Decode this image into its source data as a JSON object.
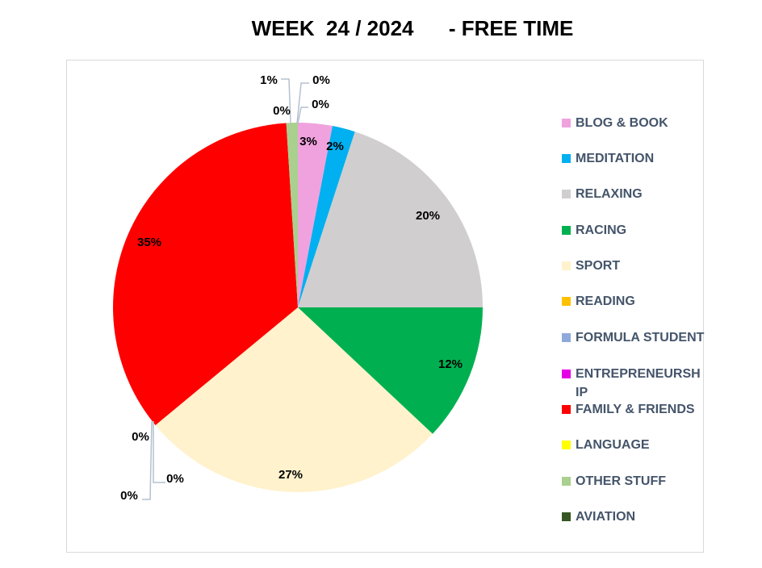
{
  "chart_data": {
    "type": "pie",
    "title": "WEEK  24 / 2024      - FREE TIME",
    "categories": [
      "BLOG & BOOK",
      "MEDITATION",
      "RELAXING",
      "RACING",
      "SPORT",
      "READING",
      "FORMULA STUDENT",
      "ENTREPRENEURSHIP",
      "FAMILY & FRIENDS",
      "LANGUAGE",
      "OTHER STUFF",
      "AVIATION",
      ""
    ],
    "values": [
      3,
      2,
      20,
      12,
      27,
      0,
      0,
      0,
      35,
      0,
      1,
      0,
      0
    ],
    "data_labels": [
      "3%",
      "2%",
      "20%",
      "12%",
      "27%",
      "0%",
      "0%",
      "0%",
      "35%",
      "0%",
      "1%",
      "0%",
      "0%"
    ],
    "colors": [
      "#F0A2DE",
      "#00B0F0",
      "#D0CECE",
      "#00B050",
      "#FFF2CC",
      "#FFC000",
      "#8EA9DB",
      "#E600E6",
      "#FF0000",
      "#FFFF00",
      "#A9D08E",
      "#375623",
      "#7F7F7F"
    ],
    "legend": {
      "position": "right",
      "items": [
        "BLOG & BOOK",
        "MEDITATION",
        "RELAXING",
        "RACING",
        "SPORT",
        "READING",
        "FORMULA STUDENT",
        "ENTREPRENEURSH IP",
        "FAMILY & FRIENDS",
        "LANGUAGE",
        "OTHER STUFF",
        "AVIATION"
      ]
    }
  }
}
